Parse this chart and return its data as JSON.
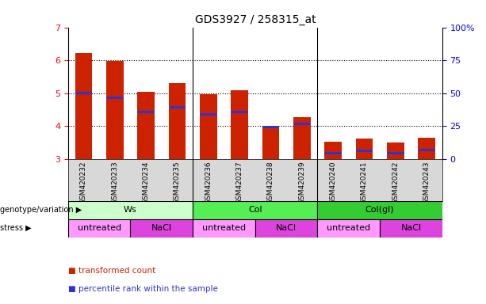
{
  "title": "GDS3927 / 258315_at",
  "samples": [
    "GSM420232",
    "GSM420233",
    "GSM420234",
    "GSM420235",
    "GSM420236",
    "GSM420237",
    "GSM420238",
    "GSM420239",
    "GSM420240",
    "GSM420241",
    "GSM420242",
    "GSM420243"
  ],
  "bar_heights": [
    6.22,
    5.98,
    5.05,
    5.32,
    4.97,
    5.1,
    3.97,
    4.27,
    3.52,
    3.62,
    3.5,
    3.65
  ],
  "blue_positions": [
    5.0,
    4.87,
    4.43,
    4.58,
    4.35,
    4.43,
    3.97,
    4.08,
    3.18,
    3.25,
    3.18,
    3.28
  ],
  "bar_bottom": 3.0,
  "ylim_left": [
    3.0,
    7.0
  ],
  "ylim_right": [
    0,
    100
  ],
  "yticks_left": [
    3,
    4,
    5,
    6,
    7
  ],
  "yticks_right": [
    0,
    25,
    50,
    75,
    100
  ],
  "bar_color": "#cc2200",
  "blue_color": "#3333cc",
  "bar_width": 0.55,
  "genotype_groups": [
    {
      "label": "Ws",
      "start": 0,
      "end": 4,
      "color": "#ccffcc"
    },
    {
      "label": "Col",
      "start": 4,
      "end": 8,
      "color": "#55ee55"
    },
    {
      "label": "Col(gl)",
      "start": 8,
      "end": 12,
      "color": "#33cc33"
    }
  ],
  "stress_groups": [
    {
      "label": "untreated",
      "start": 0,
      "end": 2,
      "color": "#ff99ff"
    },
    {
      "label": "NaCl",
      "start": 2,
      "end": 4,
      "color": "#dd44dd"
    },
    {
      "label": "untreated",
      "start": 4,
      "end": 6,
      "color": "#ff99ff"
    },
    {
      "label": "NaCl",
      "start": 6,
      "end": 8,
      "color": "#dd44dd"
    },
    {
      "label": "untreated",
      "start": 8,
      "end": 10,
      "color": "#ff99ff"
    },
    {
      "label": "NaCl",
      "start": 10,
      "end": 12,
      "color": "#dd44dd"
    }
  ],
  "legend_red_label": "transformed count",
  "legend_blue_label": "percentile rank within the sample",
  "legend_red_color": "#cc2200",
  "legend_blue_color": "#3333cc",
  "geno_label": "genotype/variation",
  "stress_label": "stress"
}
